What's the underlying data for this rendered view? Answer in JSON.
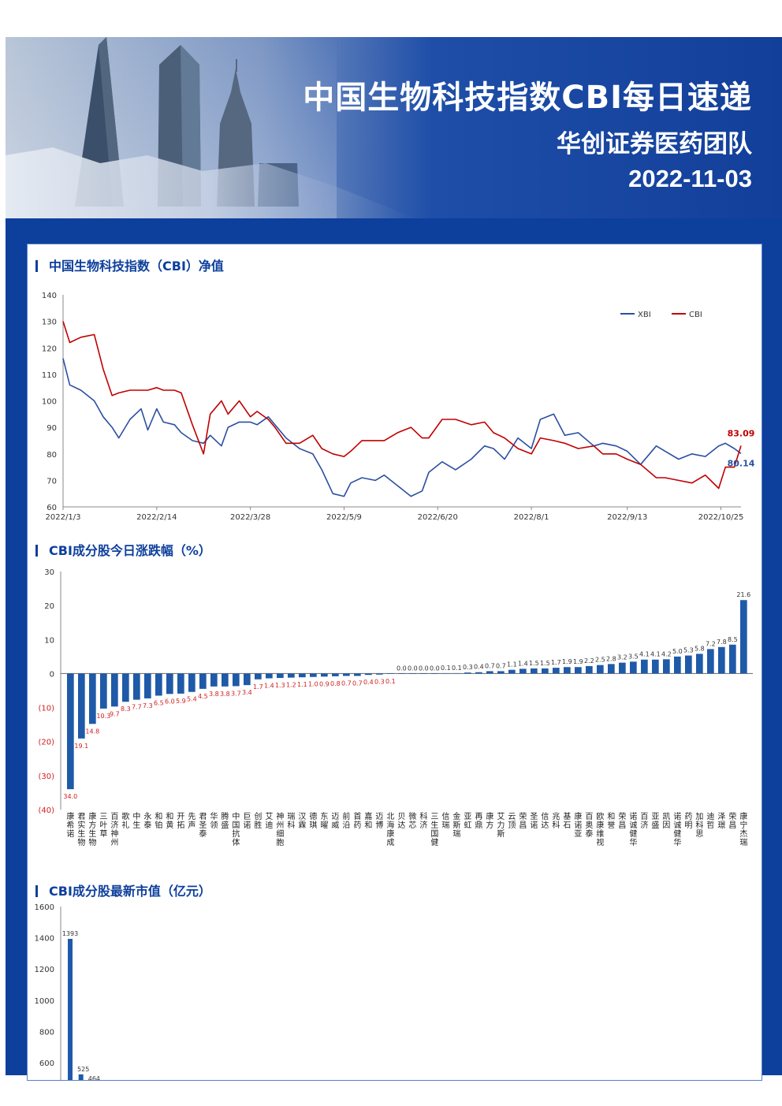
{
  "header": {
    "title": "中国生物科技指数CBI每日速递",
    "team": "华创证券医药团队",
    "date": "2022-11-03"
  },
  "sections": {
    "netvalue_title": "中国生物科技指数（CBI）净值",
    "change_title": "CBI成分股今日涨跌幅（%）",
    "mktcap_title": "CBI成分股最新市值（亿元）"
  },
  "colors": {
    "xbi": "#2b4fa0",
    "cbi": "#c00000",
    "bar": "#1f5aa8",
    "neg_label": "#d02020",
    "pos_label": "#333333",
    "page_bg": "#0d3f9c"
  },
  "chart_data": [
    {
      "type": "line",
      "title": "中国生物科技指数（CBI）净值",
      "ylim": [
        60,
        140
      ],
      "yticks": [
        60,
        70,
        80,
        90,
        100,
        110,
        120,
        130,
        140
      ],
      "x_range": [
        "2022/1/3",
        "2022/11/3"
      ],
      "xticks": [
        "2022/1/3",
        "2022/2/14",
        "2022/3/28",
        "2022/5/9",
        "2022/6/20",
        "2022/8/1",
        "2022/9/13",
        "2022/10/25"
      ],
      "legend": "top-right",
      "end_labels": {
        "CBI": "83.09",
        "XBI": "80.14"
      },
      "series": [
        {
          "name": "XBI",
          "dates": [
            "2022-01-03",
            "2022-01-06",
            "2022-01-11",
            "2022-01-17",
            "2022-01-21",
            "2022-01-25",
            "2022-01-28",
            "2022-02-02",
            "2022-02-07",
            "2022-02-10",
            "2022-02-14",
            "2022-02-17",
            "2022-02-22",
            "2022-02-25",
            "2022-03-02",
            "2022-03-07",
            "2022-03-10",
            "2022-03-15",
            "2022-03-18",
            "2022-03-23",
            "2022-03-28",
            "2022-03-31",
            "2022-04-05",
            "2022-04-08",
            "2022-04-13",
            "2022-04-19",
            "2022-04-25",
            "2022-04-29",
            "2022-05-04",
            "2022-05-09",
            "2022-05-12",
            "2022-05-17",
            "2022-05-23",
            "2022-05-27",
            "2022-06-02",
            "2022-06-08",
            "2022-06-13",
            "2022-06-16",
            "2022-06-22",
            "2022-06-28",
            "2022-07-05",
            "2022-07-11",
            "2022-07-15",
            "2022-07-20",
            "2022-07-26",
            "2022-08-01",
            "2022-08-05",
            "2022-08-11",
            "2022-08-16",
            "2022-08-22",
            "2022-08-29",
            "2022-09-02",
            "2022-09-08",
            "2022-09-13",
            "2022-09-19",
            "2022-09-26",
            "2022-09-30",
            "2022-10-06",
            "2022-10-12",
            "2022-10-18",
            "2022-10-24",
            "2022-10-27",
            "2022-10-31",
            "2022-11-03"
          ],
          "values": [
            116,
            106,
            104,
            100,
            94,
            90,
            86,
            93,
            97,
            89,
            97,
            92,
            91,
            88,
            85,
            84,
            87,
            83,
            90,
            92,
            92,
            91,
            94,
            91,
            86,
            82,
            80,
            74,
            65,
            64,
            69,
            71,
            70,
            72,
            68,
            64,
            66,
            73,
            77,
            74,
            78,
            83,
            82,
            78,
            86,
            82,
            93,
            95,
            87,
            88,
            83,
            84,
            83,
            81,
            76,
            83,
            81,
            78,
            80,
            79,
            83,
            84,
            82,
            80.14
          ]
        },
        {
          "name": "CBI",
          "dates": [
            "2022-01-03",
            "2022-01-06",
            "2022-01-11",
            "2022-01-17",
            "2022-01-21",
            "2022-01-25",
            "2022-01-28",
            "2022-02-02",
            "2022-02-07",
            "2022-02-10",
            "2022-02-14",
            "2022-02-17",
            "2022-02-22",
            "2022-02-25",
            "2022-03-02",
            "2022-03-07",
            "2022-03-10",
            "2022-03-15",
            "2022-03-18",
            "2022-03-23",
            "2022-03-28",
            "2022-03-31",
            "2022-04-05",
            "2022-04-08",
            "2022-04-13",
            "2022-04-19",
            "2022-04-25",
            "2022-04-29",
            "2022-05-04",
            "2022-05-09",
            "2022-05-12",
            "2022-05-17",
            "2022-05-23",
            "2022-05-27",
            "2022-06-02",
            "2022-06-08",
            "2022-06-13",
            "2022-06-16",
            "2022-06-22",
            "2022-06-28",
            "2022-07-05",
            "2022-07-11",
            "2022-07-15",
            "2022-07-20",
            "2022-07-26",
            "2022-08-01",
            "2022-08-05",
            "2022-08-11",
            "2022-08-16",
            "2022-08-22",
            "2022-08-29",
            "2022-09-02",
            "2022-09-08",
            "2022-09-13",
            "2022-09-19",
            "2022-09-26",
            "2022-09-30",
            "2022-10-06",
            "2022-10-12",
            "2022-10-18",
            "2022-10-24",
            "2022-10-27",
            "2022-10-31",
            "2022-11-03"
          ],
          "values": [
            130,
            122,
            124,
            125,
            112,
            102,
            103,
            104,
            104,
            104,
            105,
            104,
            104,
            103,
            91,
            80,
            95,
            100,
            95,
            100,
            94,
            96,
            93,
            90,
            84,
            84,
            87,
            82,
            80,
            79,
            81,
            85,
            85,
            85,
            88,
            90,
            86,
            86,
            93,
            93,
            91,
            92,
            88,
            86,
            82,
            80,
            86,
            85,
            84,
            82,
            83,
            80,
            80,
            78,
            76,
            71,
            71,
            70,
            69,
            72,
            67,
            75,
            75,
            83.09
          ]
        }
      ]
    },
    {
      "type": "bar",
      "title": "CBI成分股今日涨跌幅（%）",
      "ylim": [
        -40,
        30
      ],
      "yticks": [
        30,
        20,
        10,
        0,
        -10,
        -20,
        -30,
        -40
      ],
      "ytick_labels": [
        "30",
        "20",
        "10",
        "0",
        "(10)",
        "(20)",
        "(30)",
        "(40)"
      ],
      "categories": [
        "康希诺",
        "君实生物",
        "康方生物",
        "三叶草",
        "百济神州",
        "歌礼",
        "中生",
        "永泰",
        "和铂",
        "和黄",
        "开拓",
        "先声",
        "君圣泰",
        "华领",
        "腾盛",
        "中国抗体",
        "巨诺",
        "创胜",
        "艾迪",
        "神州细胞",
        "瑞科",
        "汉霖",
        "德琪",
        "东曜",
        "迈威",
        "前沿",
        "首药",
        "嘉和",
        "迈博",
        "北海康成",
        "贝达",
        "微芯",
        "科济",
        "三生国健",
        "信瑞",
        "金斯瑞",
        "亚虹",
        "再鼎",
        "康方",
        "艾力斯",
        "云顶",
        "荣昌",
        "圣诺",
        "信达",
        "兆科",
        "基石",
        "康诺亚",
        "百奥泰",
        "欧康维视",
        "和誉",
        "荣昌",
        "诺诚健华",
        "百济",
        "亚盛",
        "凯因",
        "诺诚健华",
        "药明",
        "加科思",
        "迪哲",
        "泽璟",
        "荣昌",
        "康宁杰瑞"
      ],
      "labels": [
        "-34.0",
        "-19.1",
        "-14.8",
        "-10.3",
        "-9.7",
        "-8.3",
        "-7.7",
        "-7.3",
        "-6.5",
        "-6.0",
        "-5.9",
        "-5.4",
        "-4.5",
        "-3.8",
        "-3.8",
        "-3.7",
        "-3.4",
        "-1.7",
        "-1.4",
        "-1.3",
        "-1.2",
        "-1.1",
        "-1.0",
        "-0.9",
        "-0.8",
        "-0.7",
        "-0.7",
        "-0.4",
        "-0.3",
        "-0.1",
        "0.0",
        "0.0",
        "0.0",
        "0.0",
        "0.1",
        "0.1",
        "0.3",
        "0.4",
        "0.7",
        "0.7",
        "1.1",
        "1.4",
        "1.5",
        "1.5",
        "1.7",
        "1.9",
        "1.9",
        "2.2",
        "2.5",
        "2.8",
        "3.2",
        "3.5",
        "4.1",
        "4.1",
        "4.2",
        "5.0",
        "5.3",
        "5.8",
        "7.2",
        "7.8",
        "8.5",
        "21.6"
      ],
      "values": [
        -34.0,
        -19.1,
        -14.8,
        -10.3,
        -9.7,
        -8.3,
        -7.7,
        -7.3,
        -6.5,
        -6.0,
        -5.9,
        -5.4,
        -4.5,
        -3.8,
        -3.8,
        -3.7,
        -3.4,
        -1.7,
        -1.4,
        -1.3,
        -1.2,
        -1.1,
        -1.0,
        -0.9,
        -0.8,
        -0.7,
        -0.7,
        -0.4,
        -0.3,
        -0.1,
        0.0,
        0.0,
        0.0,
        0.0,
        0.1,
        0.1,
        0.3,
        0.4,
        0.7,
        0.7,
        1.1,
        1.4,
        1.5,
        1.5,
        1.7,
        1.9,
        1.9,
        2.2,
        2.5,
        2.8,
        3.2,
        3.5,
        4.1,
        4.1,
        4.2,
        5.0,
        5.3,
        5.8,
        7.2,
        7.8,
        8.5,
        21.6
      ]
    },
    {
      "type": "bar",
      "title": "CBI成分股最新市值（亿元）",
      "ylim": [
        0,
        1600
      ],
      "yticks": [
        600,
        800,
        1000,
        1200,
        1400,
        1600
      ],
      "labels": [
        "1393",
        "525",
        "464"
      ],
      "values": [
        1393,
        525,
        464
      ]
    }
  ]
}
